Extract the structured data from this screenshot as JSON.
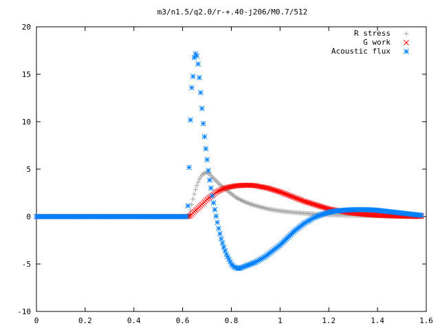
{
  "chart_data": {
    "type": "scatter",
    "title": "m3/n1.5/q2.0/r-+.40-j206/M0.7/512",
    "xlabel": "",
    "ylabel": "",
    "xlim": [
      0,
      1.6
    ],
    "ylim": [
      -10,
      20
    ],
    "x_ticks": [
      "0",
      "0.2",
      "0.4",
      "0.6",
      "0.8",
      "1",
      "1.2",
      "1.4",
      "1.6"
    ],
    "y_ticks": [
      "-10",
      "-5",
      "0",
      "5",
      "10",
      "15",
      "20"
    ],
    "grid": false,
    "legend_position": "top-right",
    "series": [
      {
        "name": "R stress",
        "marker": "+",
        "color": "#a0a0a0",
        "x": [
          0,
          0.2,
          0.4,
          0.6,
          0.62,
          0.63,
          0.64,
          0.65,
          0.66,
          0.67,
          0.68,
          0.69,
          0.7,
          0.71,
          0.72,
          0.74,
          0.76,
          0.78,
          0.8,
          0.82,
          0.85,
          0.88,
          0.92,
          0.96,
          1.0,
          1.05,
          1.1,
          1.15,
          1.2,
          1.25,
          1.3,
          1.35,
          1.4,
          1.45,
          1.5,
          1.55,
          1.58
        ],
        "y": [
          0,
          0,
          0,
          0,
          0,
          0.4,
          1.6,
          2.6,
          3.4,
          4.0,
          4.4,
          4.6,
          4.65,
          4.5,
          4.2,
          3.7,
          3.2,
          2.8,
          2.4,
          2.0,
          1.6,
          1.3,
          1.0,
          0.75,
          0.6,
          0.45,
          0.35,
          0.25,
          0.2,
          0.15,
          0.12,
          0.1,
          0.08,
          0.06,
          0.05,
          0.04,
          0.04
        ]
      },
      {
        "name": "G work",
        "marker": "x",
        "color": "#ff0000",
        "x": [
          0,
          0.2,
          0.4,
          0.6,
          0.62,
          0.63,
          0.64,
          0.65,
          0.66,
          0.68,
          0.7,
          0.72,
          0.74,
          0.76,
          0.78,
          0.8,
          0.82,
          0.85,
          0.88,
          0.9,
          0.95,
          1.0,
          1.05,
          1.1,
          1.15,
          1.2,
          1.25,
          1.3,
          1.35,
          1.4,
          1.45,
          1.5,
          1.55,
          1.58
        ],
        "y": [
          0,
          0,
          0,
          0,
          0,
          0.05,
          0.3,
          0.6,
          0.8,
          1.3,
          1.8,
          2.2,
          2.6,
          2.85,
          3.05,
          3.15,
          3.25,
          3.3,
          3.3,
          3.25,
          3.0,
          2.6,
          2.1,
          1.6,
          1.2,
          0.8,
          0.55,
          0.35,
          0.22,
          0.14,
          0.08,
          0.04,
          0.02,
          0.02
        ]
      },
      {
        "name": "Acoustic flux",
        "marker": "*",
        "color": "#0080ff",
        "x": [
          0,
          0.2,
          0.4,
          0.6,
          0.62,
          0.63,
          0.635,
          0.64,
          0.645,
          0.65,
          0.655,
          0.66,
          0.665,
          0.67,
          0.675,
          0.68,
          0.685,
          0.69,
          0.695,
          0.7,
          0.705,
          0.71,
          0.715,
          0.72,
          0.73,
          0.74,
          0.75,
          0.76,
          0.77,
          0.78,
          0.79,
          0.8,
          0.81,
          0.82,
          0.83,
          0.84,
          0.85,
          0.86,
          0.87,
          0.88,
          0.89,
          0.9,
          0.92,
          0.94,
          0.96,
          0.98,
          1.0,
          1.02,
          1.04,
          1.06,
          1.08,
          1.1,
          1.12,
          1.14,
          1.16,
          1.18,
          1.2,
          1.22,
          1.24,
          1.26,
          1.28,
          1.3,
          1.32,
          1.34,
          1.36,
          1.38,
          1.4,
          1.42,
          1.44,
          1.46,
          1.48,
          1.5,
          1.52,
          1.54,
          1.56,
          1.58
        ],
        "y": [
          0,
          0,
          0,
          0,
          0,
          7.7,
          13.9,
          13.2,
          16.3,
          17.1,
          17.2,
          16.8,
          15.8,
          14.3,
          12.8,
          11.2,
          9.7,
          8.4,
          7.2,
          6.1,
          5.0,
          4.0,
          3.2,
          2.4,
          1.0,
          -0.3,
          -1.5,
          -2.5,
          -3.3,
          -4.0,
          -4.5,
          -5.0,
          -5.3,
          -5.4,
          -5.5,
          -5.4,
          -5.3,
          -5.2,
          -5.1,
          -5.0,
          -4.9,
          -4.8,
          -4.5,
          -4.2,
          -3.8,
          -3.4,
          -3.0,
          -2.5,
          -2.0,
          -1.5,
          -1.1,
          -0.7,
          -0.4,
          -0.1,
          0.1,
          0.3,
          0.45,
          0.55,
          0.62,
          0.66,
          0.7,
          0.72,
          0.73,
          0.73,
          0.72,
          0.7,
          0.66,
          0.6,
          0.54,
          0.48,
          0.42,
          0.36,
          0.3,
          0.24,
          0.18,
          0.14
        ]
      }
    ]
  }
}
